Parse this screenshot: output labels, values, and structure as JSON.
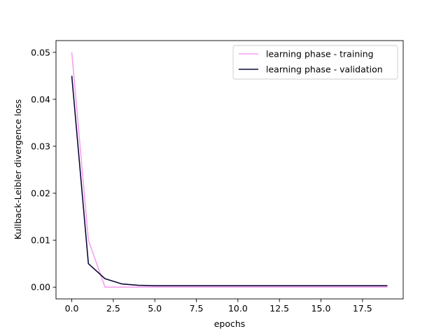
{
  "chart_data": {
    "type": "line",
    "xlabel": "epochs",
    "ylabel": "Kullback-Leibler divergence loss",
    "xlim": [
      -0.95,
      19.95
    ],
    "ylim": [
      -0.0025,
      0.0525
    ],
    "x_ticks": [
      0.0,
      2.5,
      5.0,
      7.5,
      10.0,
      12.5,
      15.0,
      17.5
    ],
    "x_tick_labels": [
      "0.0",
      "2.5",
      "5.0",
      "7.5",
      "10.0",
      "12.5",
      "15.0",
      "17.5"
    ],
    "y_ticks": [
      0.0,
      0.01,
      0.02,
      0.03,
      0.04,
      0.05
    ],
    "y_tick_labels": [
      "0.00",
      "0.01",
      "0.02",
      "0.03",
      "0.04",
      "0.05"
    ],
    "grid": false,
    "legend_position": "top-right",
    "x": [
      0,
      1,
      2,
      3,
      4,
      5,
      6,
      7,
      8,
      9,
      10,
      11,
      12,
      13,
      14,
      15,
      16,
      17,
      18,
      19
    ],
    "series": [
      {
        "name": "learning phase - training",
        "color": "#f5a0ef",
        "values": [
          0.05,
          0.01,
          0.0,
          0.0,
          0.0,
          0.0,
          0.0,
          0.0,
          0.0,
          0.0,
          0.0,
          0.0,
          0.0,
          0.0,
          0.0,
          0.0,
          0.0,
          0.0,
          0.0,
          0.0
        ]
      },
      {
        "name": "learning phase - validation",
        "color": "#0b0a3a",
        "values": [
          0.045,
          0.005,
          0.0018,
          0.0007,
          0.0004,
          0.0003,
          0.0003,
          0.0003,
          0.0003,
          0.0003,
          0.0003,
          0.0003,
          0.0003,
          0.0003,
          0.0003,
          0.0003,
          0.0003,
          0.0003,
          0.0003,
          0.0003
        ]
      }
    ]
  }
}
